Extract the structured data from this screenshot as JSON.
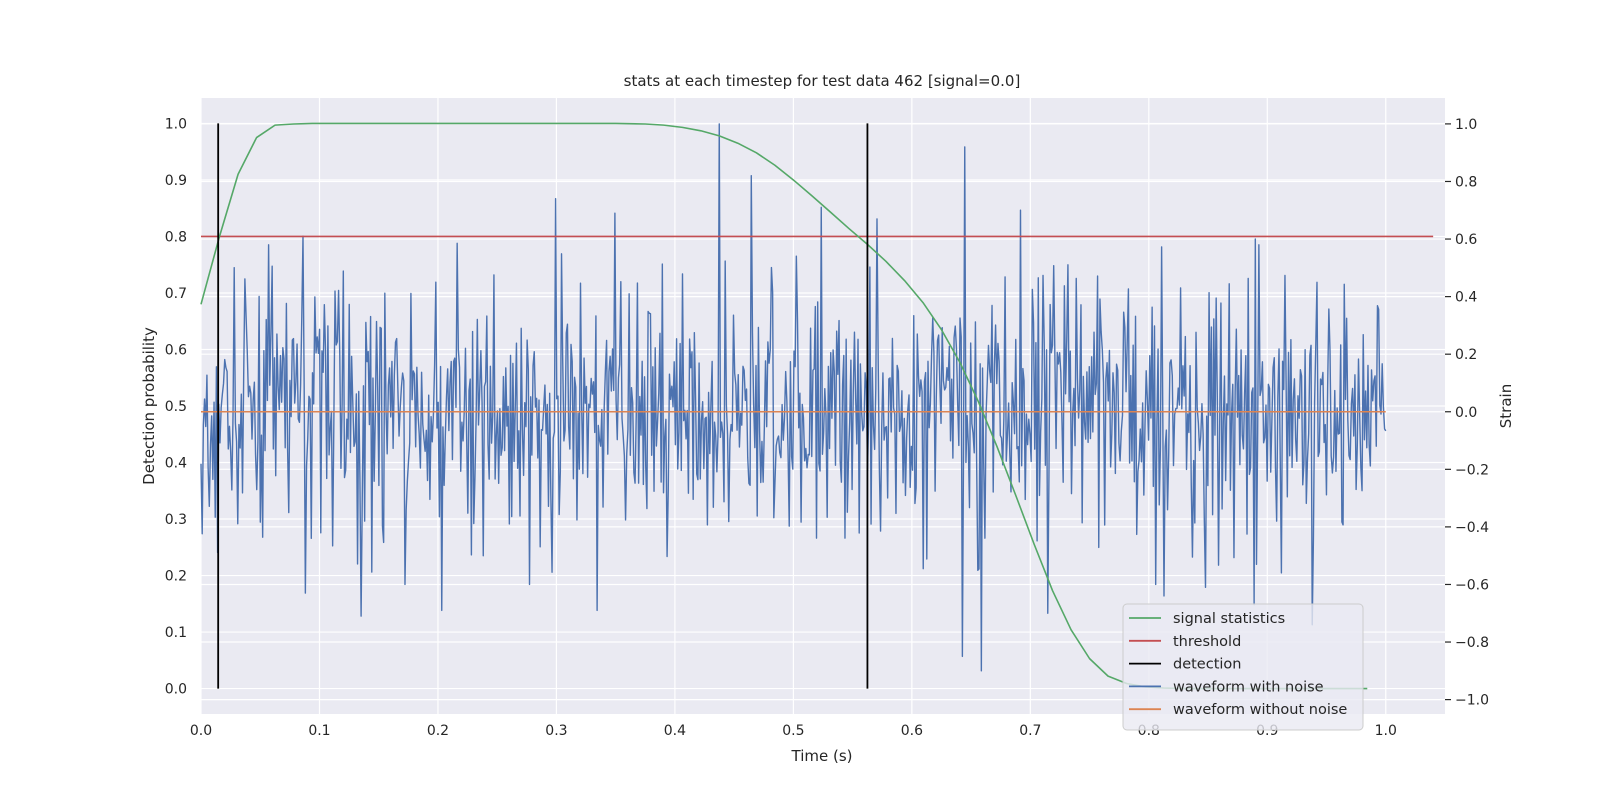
{
  "chart_data": {
    "type": "line",
    "title": "stats at each timestep for test data 462 [signal=0.0]",
    "xlabel": "Time (s)",
    "ylabel": "Detection probability",
    "y2label": "Strain",
    "xlim": [
      0.0,
      1.05
    ],
    "ylim": [
      -0.045,
      1.045
    ],
    "y2lim": [
      -1.05,
      1.09
    ],
    "xticks": [
      "0.0",
      "0.1",
      "0.2",
      "0.3",
      "0.4",
      "0.5",
      "0.6",
      "0.7",
      "0.8",
      "0.9",
      "1.0"
    ],
    "yticks": [
      "0.0",
      "0.1",
      "0.2",
      "0.3",
      "0.4",
      "0.5",
      "0.6",
      "0.7",
      "0.8",
      "0.9",
      "1.0"
    ],
    "y2ticks": [
      "−1.0",
      "−0.8",
      "−0.6",
      "−0.4",
      "−0.2",
      "0.0",
      "0.2",
      "0.4",
      "0.6",
      "0.8",
      "1.0"
    ],
    "grid": true,
    "legend_position": "bottom-right",
    "legend": [
      {
        "label": "signal statistics",
        "color": "#55a868"
      },
      {
        "label": "threshold",
        "color": "#c44e52"
      },
      {
        "label": "detection",
        "color": "#000000"
      },
      {
        "label": "waveform with noise",
        "color": "#4c72b0"
      },
      {
        "label": "waveform without noise",
        "color": "#dd8452"
      }
    ],
    "series": [
      {
        "name": "signal statistics",
        "axis": "left",
        "x": [
          0.0,
          0.0156,
          0.0313,
          0.0469,
          0.0625,
          0.0781,
          0.0938,
          0.1094,
          0.125,
          0.15,
          0.2,
          0.25,
          0.3,
          0.35,
          0.375,
          0.3906,
          0.4063,
          0.4219,
          0.4375,
          0.4531,
          0.4688,
          0.4844,
          0.5,
          0.5156,
          0.5313,
          0.5469,
          0.5625,
          0.5781,
          0.5938,
          0.6094,
          0.625,
          0.6406,
          0.6563,
          0.6719,
          0.6875,
          0.7031,
          0.7188,
          0.7344,
          0.75,
          0.7656,
          0.7813,
          0.7969,
          0.8125,
          0.8281,
          0.8438,
          0.8594,
          0.875,
          0.8906,
          0.9063,
          0.9219,
          0.9375,
          0.9531,
          0.9688,
          0.9844
        ],
        "values": [
          0.68,
          0.8,
          0.91,
          0.975,
          0.997,
          0.999,
          1.0,
          1.0,
          1.0,
          1.0,
          1.0,
          1.0,
          1.0,
          1.0,
          0.999,
          0.997,
          0.993,
          0.987,
          0.978,
          0.965,
          0.948,
          0.926,
          0.9,
          0.872,
          0.843,
          0.814,
          0.786,
          0.756,
          0.722,
          0.683,
          0.635,
          0.577,
          0.507,
          0.428,
          0.343,
          0.256,
          0.173,
          0.104,
          0.053,
          0.022,
          0.009,
          0.003,
          0.001,
          0.0,
          0.0,
          0.0,
          0.0,
          0.0,
          0.0,
          0.0,
          0.0,
          0.0,
          0.0,
          0.0
        ]
      },
      {
        "name": "threshold",
        "axis": "left",
        "x": [
          0.0,
          1.04
        ],
        "values": [
          0.8,
          0.8
        ]
      },
      {
        "name": "detection",
        "axis": "left",
        "type": "vlines",
        "x": [
          0.0145,
          0.5625
        ],
        "range": [
          0.0,
          1.0
        ]
      },
      {
        "name": "waveform with noise",
        "axis": "right",
        "type": "noise",
        "x_range": [
          0.0,
          1.0
        ],
        "n_points": 1000,
        "seed": 462,
        "std": 0.23,
        "spikes": [
          [
            0.4375,
            1.0
          ],
          [
            0.645,
            0.92
          ],
          [
            0.4648,
            0.82
          ],
          [
            0.2988,
            0.74
          ],
          [
            0.3496,
            0.69
          ],
          [
            0.6914,
            0.7
          ],
          [
            0.5234,
            0.71
          ],
          [
            0.5703,
            0.67
          ],
          [
            0.7148,
            -0.7
          ],
          [
            0.6426,
            -0.85
          ],
          [
            0.6582,
            -0.9
          ],
          [
            0.8887,
            -0.67
          ],
          [
            0.9375,
            -0.74
          ],
          [
            0.1348,
            -0.71
          ],
          [
            0.2031,
            -0.69
          ],
          [
            0.334,
            -0.69
          ],
          [
            0.0879,
            -0.63
          ],
          [
            0.1719,
            -0.6
          ],
          [
            0.2773,
            -0.6
          ],
          [
            0.0859,
            0.61
          ],
          [
            0.8125,
            -0.64
          ],
          [
            0.8477,
            -0.61
          ],
          [
            0.8926,
            0.58
          ],
          [
            0.0566,
            0.58
          ]
        ]
      },
      {
        "name": "waveform without noise",
        "axis": "right",
        "x": [
          0.0,
          1.0
        ],
        "values": [
          0.0,
          0.0
        ]
      }
    ]
  }
}
